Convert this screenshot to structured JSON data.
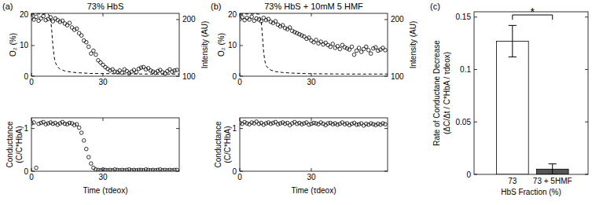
{
  "chart_data": [
    {
      "type": "scatter",
      "panel_label": "(a)",
      "title": "73% HbS",
      "ylabel": "O₂ (%)",
      "y2label": "Intensity (AU)",
      "xlim": [
        0,
        62
      ],
      "xticks": [
        0,
        30
      ],
      "ylim": [
        0,
        20.5
      ],
      "yticks": [
        0,
        10,
        20
      ],
      "y2lim": [
        100,
        211
      ],
      "y2ticks": [
        100,
        200
      ],
      "series": [
        {
          "type": "line",
          "line_style": "dashed",
          "color": "#000000",
          "x": [
            0,
            7,
            8,
            8.5,
            9,
            9.5,
            10,
            11,
            12,
            14,
            17,
            20,
            25,
            35,
            50,
            62
          ],
          "values": [
            20.3,
            20.3,
            19,
            15,
            10,
            6.5,
            4.5,
            3,
            2.3,
            1.7,
            1.3,
            1.1,
            0.9,
            0.8,
            0.7,
            0.7
          ]
        },
        {
          "type": "scatter",
          "marker": "circle",
          "color": "#000000",
          "axis": "y2",
          "x": [
            0,
            1,
            2,
            3,
            4,
            5,
            6,
            7,
            8,
            9,
            10,
            11,
            12,
            13,
            14,
            15,
            16,
            17,
            18,
            19,
            20,
            21,
            22,
            23,
            24,
            25,
            26,
            27,
            28,
            29,
            30,
            31,
            32,
            33,
            34,
            35,
            36,
            37,
            38,
            39,
            40,
            41,
            42,
            43,
            44,
            45,
            46,
            47,
            48,
            49,
            50,
            51,
            52,
            53,
            54,
            55,
            56,
            57,
            58,
            59,
            60,
            61
          ],
          "values": [
            203,
            200,
            205,
            198,
            202,
            206,
            199,
            201,
            204,
            197,
            202,
            199,
            196,
            198,
            193,
            190,
            194,
            186,
            182,
            184,
            176,
            172,
            163,
            160,
            152,
            140,
            145,
            138,
            128,
            124,
            120,
            116,
            113,
            110,
            112,
            108,
            107,
            110,
            106,
            112,
            109,
            105,
            108,
            111,
            107,
            113,
            115,
            116,
            112,
            114,
            110,
            108,
            106,
            109,
            111,
            107,
            105,
            109,
            112,
            108,
            110,
            111
          ]
        }
      ]
    },
    {
      "type": "scatter",
      "ylabel": [
        "Conductance",
        "(C/C*HbA)"
      ],
      "xlabel": "Time (τdeox)",
      "xlim": [
        0,
        62
      ],
      "xticks": [
        0,
        30
      ],
      "ylim": [
        0,
        1.25
      ],
      "yticks": [
        0,
        1
      ],
      "series": [
        {
          "type": "scatter",
          "marker": "circle",
          "color": "#000000",
          "x": [
            0,
            1,
            2,
            3,
            4,
            5,
            6,
            7,
            8,
            9,
            10,
            11,
            12,
            13,
            14,
            15,
            16,
            17,
            18,
            19,
            20,
            21,
            22,
            23,
            24,
            25,
            26,
            27,
            28,
            29,
            30,
            31,
            32,
            33,
            34,
            35,
            36,
            37,
            38,
            39,
            40,
            41,
            42,
            43,
            44,
            45,
            46,
            47,
            48,
            49,
            50,
            51,
            52,
            53,
            54,
            55,
            56,
            57,
            58,
            59,
            60,
            61
          ],
          "values": [
            1.12,
            1.14,
            0.08,
            1.11,
            1.13,
            1.15,
            1.1,
            1.12,
            1.14,
            1.11,
            1.13,
            1.09,
            1.12,
            1.15,
            1.11,
            1.1,
            1.13,
            1.12,
            1.08,
            1.1,
            1.02,
            0.9,
            0.72,
            0.52,
            0.33,
            0.18,
            0.08,
            0.04,
            0.03,
            0.02,
            0.04,
            0.03,
            0.02,
            0.03,
            0.02,
            0.04,
            0.03,
            0.02,
            0.03,
            0.02,
            0.03,
            0.04,
            0.02,
            0.03,
            0.02,
            0.03,
            0.03,
            0.02,
            0.04,
            0.03,
            0.02,
            0.03,
            0.02,
            0.03,
            0.04,
            0.02,
            0.03,
            0.02,
            0.03,
            0.02,
            0.03,
            0.03
          ]
        }
      ]
    },
    {
      "type": "scatter",
      "panel_label": "(b)",
      "title": "73% HbS + 10mM 5 HMF",
      "ylabel": "O₂ (%)",
      "y2label": "Intensity (AU)",
      "xlim": [
        0,
        62
      ],
      "xticks": [
        0,
        30
      ],
      "ylim": [
        0,
        20.5
      ],
      "yticks": [
        0,
        10,
        20
      ],
      "y2lim": [
        100,
        211
      ],
      "y2ticks": [
        100,
        200
      ],
      "series": [
        {
          "type": "line",
          "line_style": "dashed",
          "color": "#000000",
          "x": [
            0,
            8,
            9,
            9.5,
            10,
            10.5,
            11,
            12,
            13,
            15,
            18,
            22,
            30,
            45,
            62
          ],
          "values": [
            20.3,
            20.3,
            18,
            13,
            8,
            5,
            3.5,
            2.5,
            2,
            1.5,
            1.2,
            1,
            0.8,
            0.7,
            0.7
          ]
        },
        {
          "type": "scatter",
          "marker": "circle",
          "color": "#000000",
          "axis": "y2",
          "x": [
            0,
            1,
            2,
            3,
            4,
            5,
            6,
            7,
            8,
            9,
            10,
            11,
            12,
            13,
            14,
            15,
            16,
            17,
            18,
            19,
            20,
            21,
            22,
            23,
            24,
            25,
            26,
            27,
            28,
            29,
            30,
            31,
            32,
            33,
            34,
            35,
            36,
            37,
            38,
            39,
            40,
            41,
            42,
            43,
            44,
            45,
            46,
            47,
            48,
            49,
            50,
            51,
            52,
            53,
            54,
            55,
            56,
            57,
            58,
            59,
            60,
            61
          ],
          "values": [
            201,
            204,
            199,
            203,
            200,
            205,
            198,
            202,
            200,
            197,
            203,
            199,
            201,
            196,
            194,
            197,
            191,
            188,
            190,
            185,
            183,
            186,
            180,
            178,
            176,
            174,
            172,
            170,
            166,
            168,
            163,
            160,
            164,
            158,
            161,
            156,
            159,
            155,
            152,
            157,
            150,
            153,
            148,
            155,
            151,
            149,
            147,
            152,
            138,
            145,
            150,
            143,
            148,
            152,
            146,
            140,
            149,
            151,
            145,
            147,
            150,
            146
          ]
        }
      ]
    },
    {
      "type": "scatter",
      "ylabel": [
        "Conductance",
        "(C/C*HbA)"
      ],
      "xlabel": "Time (τdeox)",
      "xlim": [
        0,
        62
      ],
      "xticks": [
        0,
        30
      ],
      "ylim": [
        0,
        1.25
      ],
      "yticks": [
        0,
        1
      ],
      "series": [
        {
          "type": "scatter",
          "marker": "circle",
          "color": "#000000",
          "x": [
            0,
            1,
            2,
            3,
            4,
            5,
            6,
            7,
            8,
            9,
            10,
            11,
            12,
            13,
            14,
            15,
            16,
            17,
            18,
            19,
            20,
            21,
            22,
            23,
            24,
            25,
            26,
            27,
            28,
            29,
            30,
            31,
            32,
            33,
            34,
            35,
            36,
            37,
            38,
            39,
            40,
            41,
            42,
            43,
            44,
            45,
            46,
            47,
            48,
            49,
            50,
            51,
            52,
            53,
            54,
            55,
            56,
            57,
            58,
            59,
            60,
            61
          ],
          "values": [
            1.13,
            1.11,
            1.15,
            1.12,
            1.1,
            1.14,
            1.12,
            1.16,
            1.11,
            1.13,
            1.09,
            1.12,
            1.14,
            1.11,
            1.13,
            1.15,
            1.1,
            1.12,
            1.14,
            1.11,
            1.13,
            1.08,
            1.12,
            1.15,
            1.11,
            1.13,
            1.1,
            1.12,
            1.14,
            1.09,
            1.11,
            1.13,
            1.12,
            1.1,
            1.14,
            1.11,
            1.08,
            1.12,
            1.13,
            1.1,
            1.12,
            1.09,
            1.11,
            1.14,
            1.1,
            1.12,
            1.08,
            1.11,
            1.13,
            1.09,
            1.1,
            1.12,
            1.07,
            1.11,
            1.09,
            1.12,
            1.1,
            1.08,
            1.11,
            1.09,
            1.12,
            1.1
          ]
        }
      ]
    },
    {
      "type": "bar",
      "panel_label": "(c)",
      "ylabel": [
        "Rate of Conductane Decrease",
        "(ΔC/Δt / C*HbA / τdeox)"
      ],
      "xlabel": "HbS Fraction (%)",
      "categories": [
        "73",
        "73 + 5HMF"
      ],
      "values": [
        0.127,
        0.005
      ],
      "errors": [
        0.015,
        0.005
      ],
      "colors": [
        "#ffffff",
        "#555555"
      ],
      "ylim": [
        0,
        0.155
      ],
      "yticks": [
        0,
        0.05,
        0.1,
        0.15
      ],
      "annotation": "*"
    }
  ]
}
